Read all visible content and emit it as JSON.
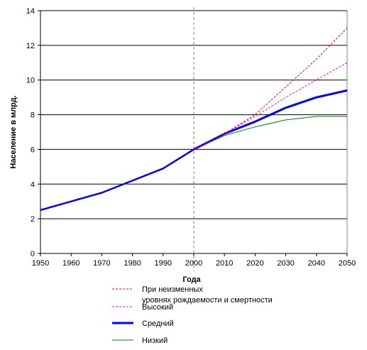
{
  "chart_data": {
    "type": "line",
    "title": "",
    "xlabel": "Года",
    "ylabel": "Население в млрд.",
    "xlim": [
      1950,
      2050
    ],
    "ylim": [
      0,
      14
    ],
    "x_ticks": [
      "1950",
      "1960",
      "1970",
      "1980",
      "1990",
      "2000",
      "2010",
      "2020",
      "2030",
      "2040",
      "2050"
    ],
    "y_ticks": [
      "0",
      "2",
      "4",
      "6",
      "8",
      "10",
      "12",
      "14"
    ],
    "grid": "horizontal",
    "reference_line_x": 2000,
    "legend_position": "bottom",
    "historical": {
      "color": "#0000ff",
      "x": [
        1950,
        1960,
        1970,
        1980,
        1990,
        2000
      ],
      "values": [
        2.5,
        3.0,
        3.5,
        4.2,
        4.9,
        6.0
      ]
    },
    "series": [
      {
        "name": "При неизменных уровнях рождаемости и смертности",
        "color": "#ff0000",
        "style": "dashed",
        "x": [
          2000,
          2010,
          2020,
          2030,
          2040,
          2050
        ],
        "values": [
          6.0,
          6.9,
          8.0,
          9.6,
          11.2,
          13.0
        ]
      },
      {
        "name": "Высокий",
        "color": "#ff00ff",
        "style": "dashed",
        "x": [
          2000,
          2010,
          2020,
          2030,
          2040,
          2050
        ],
        "values": [
          6.0,
          6.9,
          7.9,
          9.0,
          10.0,
          11.0
        ]
      },
      {
        "name": "Средний",
        "color": "#0000ff",
        "style": "solid-thick",
        "x": [
          2000,
          2010,
          2020,
          2030,
          2040,
          2050
        ],
        "values": [
          6.0,
          6.9,
          7.6,
          8.4,
          9.0,
          9.4
        ]
      },
      {
        "name": "Низкий",
        "color": "#008000",
        "style": "solid-thin",
        "x": [
          2000,
          2010,
          2020,
          2030,
          2040,
          2050
        ],
        "values": [
          6.0,
          6.8,
          7.3,
          7.7,
          7.9,
          7.9
        ]
      }
    ]
  }
}
